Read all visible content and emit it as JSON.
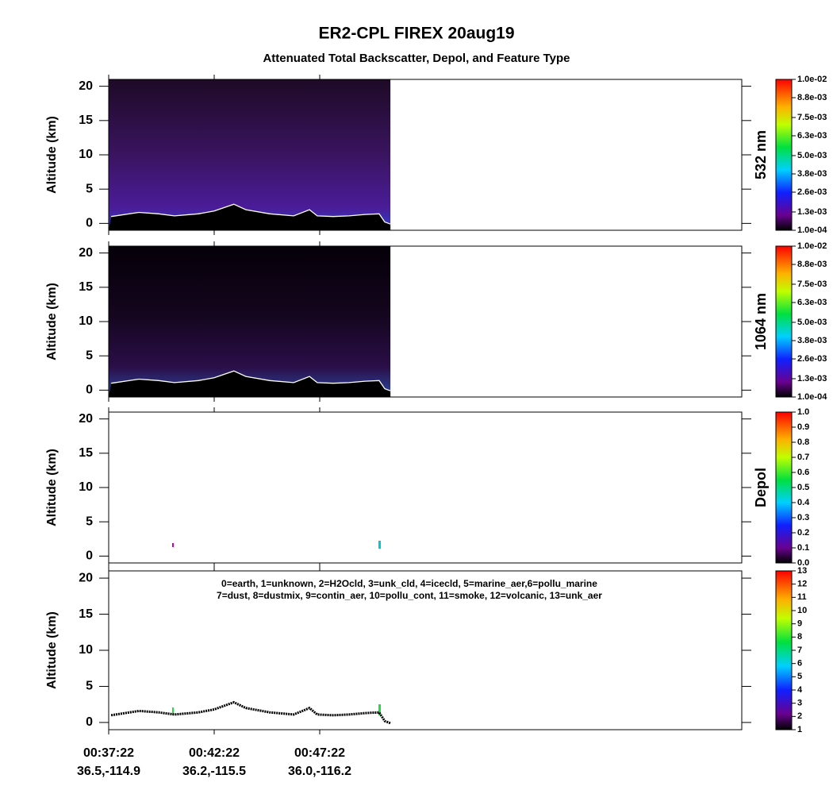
{
  "title": "ER2-CPL  FIREX  20aug19",
  "subtitle": "Attenuated Total Backscatter, Depol, and Feature Type",
  "chart_data": [
    {
      "type": "heatmap",
      "ylabel": "Altitude (km)",
      "colorbar_label": "532 nm",
      "ylim": [
        -1,
        21
      ],
      "yticks": [
        0,
        5,
        10,
        15,
        20
      ],
      "clim": [
        0.0001,
        0.01
      ],
      "cticks": [
        {
          "value": 0.01,
          "label": "1.0e-02"
        },
        {
          "value": 0.0088,
          "label": "8.8e-03"
        },
        {
          "value": 0.0075,
          "label": "7.5e-03"
        },
        {
          "value": 0.0063,
          "label": "6.3e-03"
        },
        {
          "value": 0.005,
          "label": "5.0e-03"
        },
        {
          "value": 0.0038,
          "label": "3.8e-03"
        },
        {
          "value": 0.0026,
          "label": "2.6e-03"
        },
        {
          "value": 0.0013,
          "label": "1.3e-03"
        },
        {
          "value": 0.0001,
          "label": "1.0e-04"
        }
      ],
      "surface_color": "#ffffff",
      "series": [
        {
          "color": "#ffffff",
          "x": [
            2249,
            2328,
            2384,
            2429,
            2497,
            2542,
            2598,
            2632,
            2700,
            2768,
            2813,
            2835,
            2880,
            2925,
            2971,
            3011,
            3027,
            3043
          ],
          "values": [
            1.0,
            1.6,
            1.4,
            1.1,
            1.4,
            1.8,
            2.8,
            2.0,
            1.4,
            1.1,
            2.0,
            1.1,
            1.0,
            1.1,
            1.3,
            1.4,
            0.2,
            -0.1
          ]
        }
      ]
    },
    {
      "type": "heatmap",
      "ylabel": "Altitude (km)",
      "colorbar_label": "1064 nm",
      "ylim": [
        -1,
        21
      ],
      "yticks": [
        0,
        5,
        10,
        15,
        20
      ],
      "clim": [
        0.0001,
        0.01
      ],
      "cticks": [
        {
          "value": 0.01,
          "label": "1.0e-02"
        },
        {
          "value": 0.0088,
          "label": "8.8e-03"
        },
        {
          "value": 0.0075,
          "label": "7.5e-03"
        },
        {
          "value": 0.0063,
          "label": "6.3e-03"
        },
        {
          "value": 0.005,
          "label": "5.0e-03"
        },
        {
          "value": 0.0038,
          "label": "3.8e-03"
        },
        {
          "value": 0.0026,
          "label": "2.6e-03"
        },
        {
          "value": 0.0013,
          "label": "1.3e-03"
        },
        {
          "value": 0.0001,
          "label": "1.0e-04"
        }
      ],
      "surface_color": "#ffffff"
    },
    {
      "type": "heatmap",
      "ylabel": "Altitude (km)",
      "colorbar_label": "Depol",
      "ylim": [
        -1,
        21
      ],
      "yticks": [
        0,
        5,
        10,
        15,
        20
      ],
      "clim": [
        0,
        1
      ],
      "cticks": [
        {
          "value": 1,
          "label": "1.0"
        },
        0.9,
        0.8,
        0.7,
        0.6,
        0.5,
        0.4,
        0.3,
        0.2,
        0.1,
        {
          "value": 0,
          "label": "0.0"
        }
      ]
    },
    {
      "type": "heatmap",
      "ylabel": "Altitude (km)",
      "ylim": [
        -1,
        21
      ],
      "yticks": [
        0,
        5,
        10,
        15,
        20
      ],
      "clim": [
        1,
        13
      ],
      "cticks": [
        13,
        12,
        11,
        10,
        9,
        8,
        7,
        6,
        5,
        4,
        3,
        2,
        1
      ],
      "surface_color": "#000000",
      "annotations": [
        "0=earth, 1=unknown, 2=H2Ocld, 3=unk_cld, 4=icecld, 5=marine_aer,6=pollu_marine",
        "7=dust, 8=dustmix, 9=contin_aer, 10=pollu_cont, 11=smoke, 12=volcanic, 13=unk_aer"
      ],
      "xlim": [
        2242,
        4042
      ],
      "xticks": [
        {
          "value": 2242,
          "label": "00:37:22",
          "location": "36.5,-114.9"
        },
        {
          "value": 2542,
          "label": "00:42:22",
          "location": "36.2,-115.5"
        },
        {
          "value": 2842,
          "label": "00:47:22",
          "location": "36.0,-116.2"
        }
      ]
    }
  ]
}
